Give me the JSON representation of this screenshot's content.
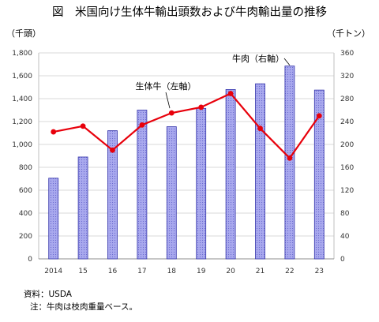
{
  "title": "図　米国向け生体牛輸出頭数および牛肉輸出量の推移",
  "left_unit": "（千頭）",
  "right_unit": "（千トン）",
  "source": "資料：USDA",
  "note": "注：牛肉は枝肉重量ベース。",
  "colors": {
    "bar_fill": "#a9a9ee",
    "bar_stroke": "#3333aa",
    "line": "#e8000b",
    "grid": "#d9d9d9"
  },
  "chart_data": {
    "type": "bar+line",
    "categories": [
      "2014",
      "15",
      "16",
      "17",
      "18",
      "19",
      "20",
      "21",
      "22",
      "23"
    ],
    "series": [
      {
        "name": "牛肉（右軸）",
        "type": "bar",
        "axis": "right",
        "values": [
          141,
          178,
          224,
          260,
          231,
          263,
          296,
          306,
          337,
          295
        ]
      },
      {
        "name": "生体牛（左軸）",
        "type": "line",
        "axis": "left",
        "values": [
          1110,
          1160,
          950,
          1170,
          1275,
          1325,
          1445,
          1140,
          880,
          1250
        ]
      }
    ],
    "left_axis": {
      "min": 0,
      "max": 1800,
      "ticks": [
        0,
        200,
        400,
        600,
        800,
        1000,
        1200,
        1400,
        1600,
        1800
      ]
    },
    "right_axis": {
      "min": 0,
      "max": 360,
      "ticks": [
        0,
        40,
        80,
        120,
        160,
        200,
        240,
        280,
        320,
        360
      ]
    },
    "grid": true
  }
}
